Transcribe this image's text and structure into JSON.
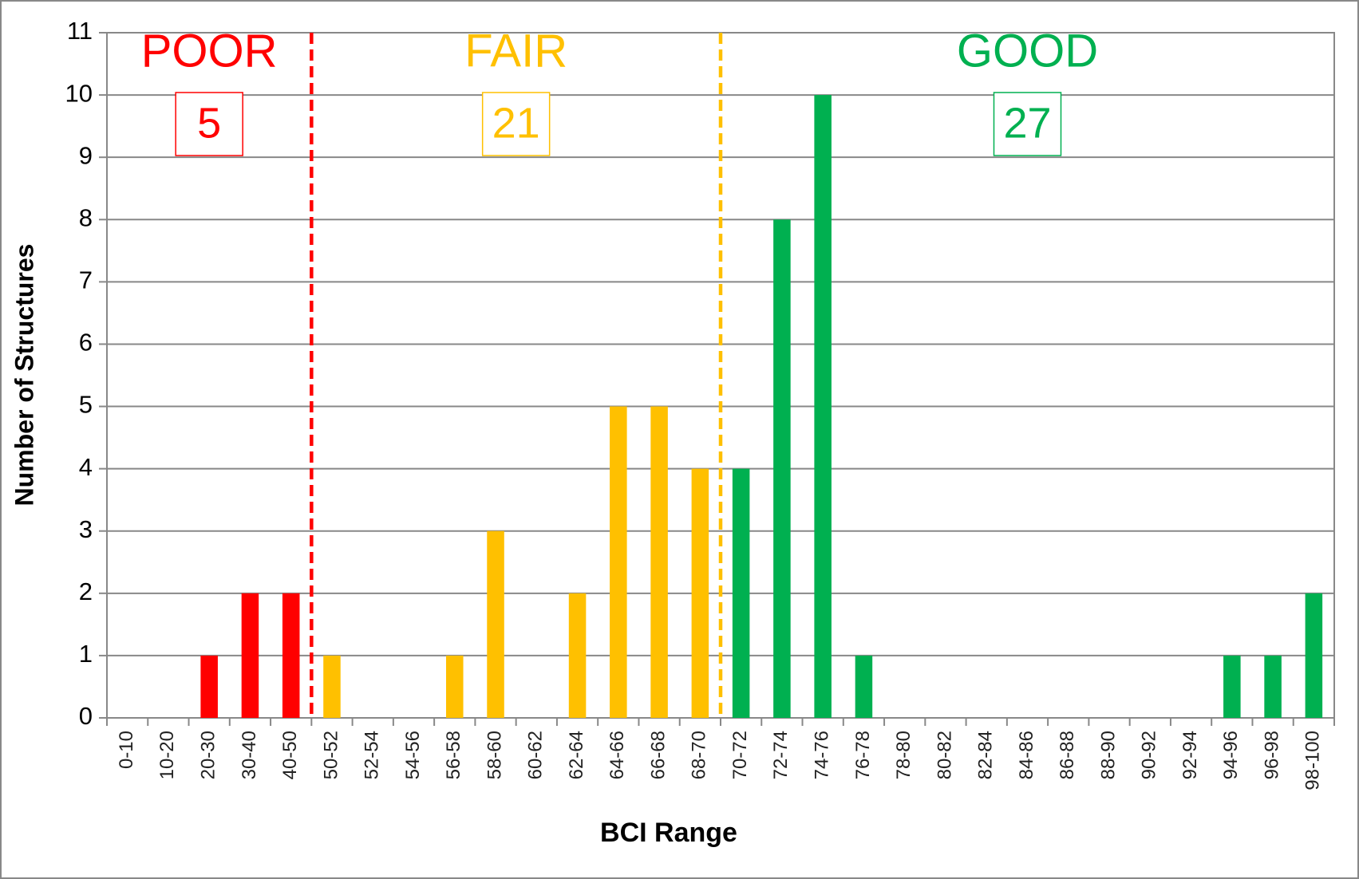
{
  "chart_data": {
    "type": "bar",
    "x_label": "BCI Range",
    "y_label": "Number of Structures",
    "categories": [
      "0-10",
      "10-20",
      "20-30",
      "30-40",
      "40-50",
      "50-52",
      "52-54",
      "54-56",
      "56-58",
      "58-60",
      "60-62",
      "62-64",
      "64-66",
      "66-68",
      "68-70",
      "70-72",
      "72-74",
      "74-76",
      "76-78",
      "78-80",
      "80-82",
      "82-84",
      "84-86",
      "86-88",
      "88-90",
      "90-92",
      "92-94",
      "94-96",
      "96-98",
      "98-100"
    ],
    "values": [
      0,
      0,
      1,
      2,
      2,
      1,
      0,
      0,
      1,
      3,
      0,
      2,
      5,
      5,
      4,
      4,
      8,
      10,
      1,
      0,
      0,
      0,
      0,
      0,
      0,
      0,
      0,
      1,
      1,
      2
    ],
    "colors": [
      "#ff0000",
      "#ff0000",
      "#ff0000",
      "#ff0000",
      "#ff0000",
      "#ffc000",
      "#ffc000",
      "#ffc000",
      "#ffc000",
      "#ffc000",
      "#ffc000",
      "#ffc000",
      "#ffc000",
      "#ffc000",
      "#ffc000",
      "#00b050",
      "#00b050",
      "#00b050",
      "#00b050",
      "#00b050",
      "#00b050",
      "#00b050",
      "#00b050",
      "#00b050",
      "#00b050",
      "#00b050",
      "#00b050",
      "#00b050",
      "#00b050",
      "#00b050"
    ],
    "zones": [
      {
        "label": "POOR",
        "count": "5",
        "color": "#ff0000"
      },
      {
        "label": "FAIR",
        "count": "21",
        "color": "#ffc000"
      },
      {
        "label": "GOOD",
        "count": "27",
        "color": "#00b050"
      }
    ],
    "ylim": [
      0,
      11
    ],
    "yticks": [
      0,
      1,
      2,
      3,
      4,
      5,
      6,
      7,
      8,
      9,
      10,
      11
    ],
    "grid": true
  }
}
